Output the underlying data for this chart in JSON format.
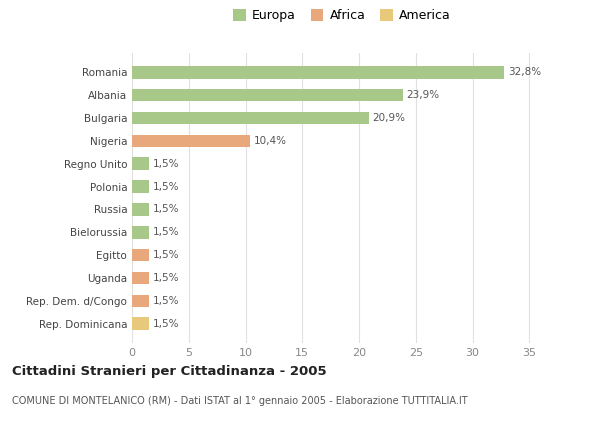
{
  "countries": [
    "Romania",
    "Albania",
    "Bulgaria",
    "Nigeria",
    "Regno Unito",
    "Polonia",
    "Russia",
    "Bielorussia",
    "Egitto",
    "Uganda",
    "Rep. Dem. d/Congo",
    "Rep. Dominicana"
  ],
  "values": [
    32.8,
    23.9,
    20.9,
    10.4,
    1.5,
    1.5,
    1.5,
    1.5,
    1.5,
    1.5,
    1.5,
    1.5
  ],
  "labels": [
    "32,8%",
    "23,9%",
    "20,9%",
    "10,4%",
    "1,5%",
    "1,5%",
    "1,5%",
    "1,5%",
    "1,5%",
    "1,5%",
    "1,5%",
    "1,5%"
  ],
  "colors": [
    "#a8c88a",
    "#a8c88a",
    "#a8c88a",
    "#e8a87c",
    "#a8c88a",
    "#a8c88a",
    "#a8c88a",
    "#a8c88a",
    "#e8a87c",
    "#e8a87c",
    "#e8a87c",
    "#e8c87a"
  ],
  "legend_labels": [
    "Europa",
    "Africa",
    "America"
  ],
  "legend_colors": [
    "#a8c88a",
    "#e8a87c",
    "#e8c87a"
  ],
  "title": "Cittadini Stranieri per Cittadinanza - 2005",
  "subtitle": "COMUNE DI MONTELANICO (RM) - Dati ISTAT al 1° gennaio 2005 - Elaborazione TUTTITALIA.IT",
  "xlim": [
    0,
    37
  ],
  "xticks": [
    0,
    5,
    10,
    15,
    20,
    25,
    30,
    35
  ],
  "background_color": "#ffffff",
  "grid_color": "#e0e0e0",
  "bar_height": 0.55
}
